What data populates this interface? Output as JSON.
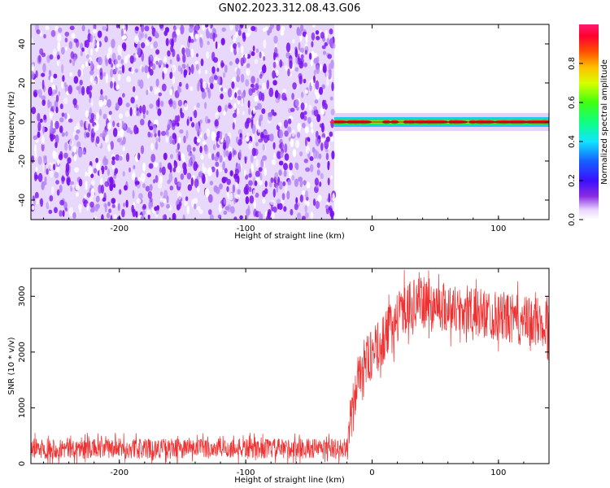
{
  "title": "GN02.2023.312.08.43.G06",
  "colors": {
    "snr_line": "#f03030",
    "scatter": "#7a12ee",
    "ridge_core": "#ff2020",
    "ridge_mid": "#22ee33",
    "ridge_outer": "#1fc8ff"
  },
  "chart_data": [
    {
      "type": "heatmap",
      "title": "GN02.2023.312.08.43.G06",
      "xlabel": "Height of straight line (km)",
      "ylabel": "Frequency (Hz)",
      "xlim": [
        -270,
        140
      ],
      "ylim": [
        -50,
        50
      ],
      "x_ticks": [
        -200,
        -100,
        0,
        100
      ],
      "y_ticks": [
        -40,
        -20,
        0,
        20,
        40
      ],
      "noise_region_x": [
        -270,
        -30
      ],
      "signal_region_x": [
        -30,
        140
      ],
      "signal_frequency_hz": 0,
      "colorbar": {
        "label": "Normalized spectral amplitude",
        "range": [
          0.0,
          1.0
        ],
        "ticks": [
          0.0,
          0.2,
          0.4,
          0.6,
          0.8
        ]
      }
    },
    {
      "type": "line",
      "xlabel": "Height of straight line (km)",
      "ylabel": "SNR (10 * v/v)",
      "xlim": [
        -270,
        140
      ],
      "ylim": [
        0,
        3500
      ],
      "x_ticks": [
        -200,
        -100,
        0,
        100
      ],
      "y_ticks": [
        0,
        1000,
        2000,
        3000
      ],
      "series": [
        {
          "x": [
            -270,
            -20,
            -18,
            -10,
            0,
            10,
            20,
            30,
            40,
            50,
            60,
            70,
            80,
            90,
            100,
            110,
            120,
            130,
            140
          ],
          "y": [
            270,
            270,
            600,
            1700,
            1950,
            2250,
            2650,
            2850,
            2900,
            2850,
            2800,
            2750,
            2700,
            2700,
            2650,
            2600,
            2550,
            2550,
            2500
          ]
        }
      ]
    }
  ]
}
